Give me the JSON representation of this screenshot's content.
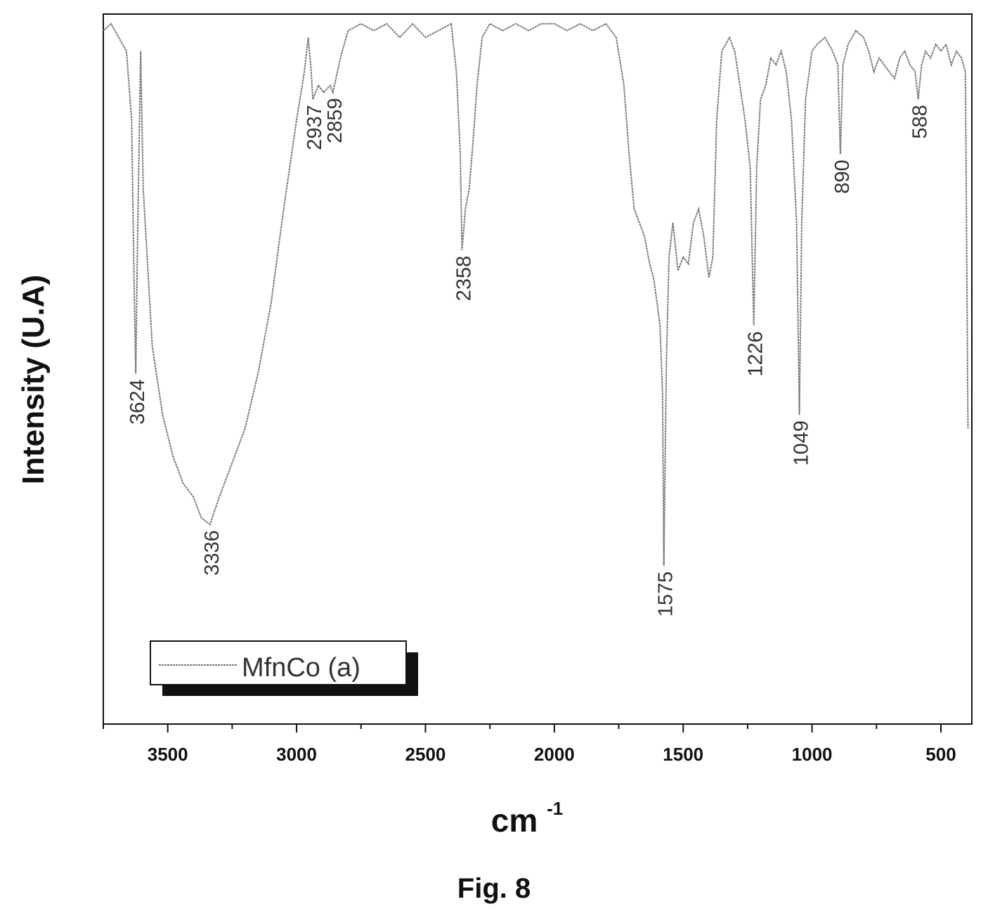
{
  "chart_data": {
    "type": "line",
    "xlabel": "cm",
    "xlabel_superscript": "-1",
    "ylabel": "Intensity (U.A)",
    "x_reversed": true,
    "xlim": [
      3750,
      380
    ],
    "x_ticks": [
      3500,
      3000,
      2500,
      2000,
      1500,
      1000,
      500
    ],
    "y_ticks_shown": false,
    "grid": false,
    "legend": {
      "position": "bottom-left",
      "entries": [
        "MfnCo (a)"
      ]
    },
    "peak_labels": [
      "3624",
      "3336",
      "2937",
      "2859",
      "2358",
      "1575",
      "1226",
      "1049",
      "890",
      "588"
    ],
    "series": [
      {
        "name": "MfnCo (a)",
        "color": "#777777",
        "points": [
          [
            3750,
            0.98
          ],
          [
            3720,
            0.99
          ],
          [
            3690,
            0.97
          ],
          [
            3660,
            0.95
          ],
          [
            3640,
            0.85
          ],
          [
            3630,
            0.6
          ],
          [
            3624,
            0.48
          ],
          [
            3618,
            0.65
          ],
          [
            3605,
            0.95
          ],
          [
            3595,
            0.75
          ],
          [
            3560,
            0.52
          ],
          [
            3520,
            0.42
          ],
          [
            3480,
            0.36
          ],
          [
            3440,
            0.32
          ],
          [
            3400,
            0.3
          ],
          [
            3370,
            0.27
          ],
          [
            3336,
            0.26
          ],
          [
            3300,
            0.3
          ],
          [
            3250,
            0.35
          ],
          [
            3200,
            0.4
          ],
          [
            3150,
            0.48
          ],
          [
            3100,
            0.58
          ],
          [
            3050,
            0.72
          ],
          [
            3000,
            0.85
          ],
          [
            2970,
            0.92
          ],
          [
            2955,
            0.97
          ],
          [
            2945,
            0.93
          ],
          [
            2937,
            0.88
          ],
          [
            2915,
            0.9
          ],
          [
            2895,
            0.89
          ],
          [
            2870,
            0.9
          ],
          [
            2859,
            0.89
          ],
          [
            2830,
            0.94
          ],
          [
            2800,
            0.98
          ],
          [
            2750,
            0.99
          ],
          [
            2700,
            0.98
          ],
          [
            2650,
            0.99
          ],
          [
            2600,
            0.97
          ],
          [
            2550,
            0.99
          ],
          [
            2500,
            0.97
          ],
          [
            2450,
            0.98
          ],
          [
            2400,
            0.99
          ],
          [
            2380,
            0.92
          ],
          [
            2365,
            0.8
          ],
          [
            2358,
            0.66
          ],
          [
            2345,
            0.72
          ],
          [
            2330,
            0.75
          ],
          [
            2315,
            0.82
          ],
          [
            2300,
            0.9
          ],
          [
            2280,
            0.97
          ],
          [
            2250,
            0.99
          ],
          [
            2200,
            0.98
          ],
          [
            2150,
            0.99
          ],
          [
            2100,
            0.98
          ],
          [
            2050,
            0.99
          ],
          [
            2000,
            0.99
          ],
          [
            1950,
            0.98
          ],
          [
            1900,
            0.99
          ],
          [
            1850,
            0.98
          ],
          [
            1800,
            0.99
          ],
          [
            1760,
            0.97
          ],
          [
            1730,
            0.9
          ],
          [
            1710,
            0.8
          ],
          [
            1690,
            0.72
          ],
          [
            1670,
            0.7
          ],
          [
            1650,
            0.68
          ],
          [
            1630,
            0.64
          ],
          [
            1615,
            0.62
          ],
          [
            1600,
            0.58
          ],
          [
            1590,
            0.55
          ],
          [
            1580,
            0.45
          ],
          [
            1575,
            0.2
          ],
          [
            1565,
            0.5
          ],
          [
            1555,
            0.65
          ],
          [
            1540,
            0.7
          ],
          [
            1520,
            0.63
          ],
          [
            1500,
            0.65
          ],
          [
            1480,
            0.64
          ],
          [
            1460,
            0.7
          ],
          [
            1440,
            0.72
          ],
          [
            1420,
            0.68
          ],
          [
            1400,
            0.62
          ],
          [
            1385,
            0.65
          ],
          [
            1370,
            0.85
          ],
          [
            1350,
            0.95
          ],
          [
            1320,
            0.97
          ],
          [
            1300,
            0.95
          ],
          [
            1280,
            0.9
          ],
          [
            1260,
            0.85
          ],
          [
            1240,
            0.78
          ],
          [
            1226,
            0.55
          ],
          [
            1215,
            0.78
          ],
          [
            1200,
            0.88
          ],
          [
            1180,
            0.9
          ],
          [
            1160,
            0.94
          ],
          [
            1140,
            0.93
          ],
          [
            1120,
            0.95
          ],
          [
            1100,
            0.92
          ],
          [
            1080,
            0.85
          ],
          [
            1060,
            0.7
          ],
          [
            1049,
            0.42
          ],
          [
            1040,
            0.7
          ],
          [
            1025,
            0.88
          ],
          [
            1000,
            0.95
          ],
          [
            980,
            0.96
          ],
          [
            950,
            0.97
          ],
          [
            920,
            0.95
          ],
          [
            900,
            0.93
          ],
          [
            890,
            0.8
          ],
          [
            880,
            0.93
          ],
          [
            860,
            0.96
          ],
          [
            830,
            0.98
          ],
          [
            800,
            0.97
          ],
          [
            780,
            0.95
          ],
          [
            760,
            0.92
          ],
          [
            740,
            0.94
          ],
          [
            720,
            0.93
          ],
          [
            700,
            0.92
          ],
          [
            680,
            0.91
          ],
          [
            660,
            0.94
          ],
          [
            640,
            0.95
          ],
          [
            620,
            0.93
          ],
          [
            600,
            0.92
          ],
          [
            588,
            0.88
          ],
          [
            575,
            0.93
          ],
          [
            560,
            0.95
          ],
          [
            540,
            0.94
          ],
          [
            520,
            0.96
          ],
          [
            500,
            0.95
          ],
          [
            480,
            0.96
          ],
          [
            460,
            0.93
          ],
          [
            440,
            0.95
          ],
          [
            420,
            0.94
          ],
          [
            405,
            0.92
          ],
          [
            395,
            0.4
          ]
        ]
      }
    ]
  },
  "figure": {
    "caption": "Fig. 8"
  }
}
